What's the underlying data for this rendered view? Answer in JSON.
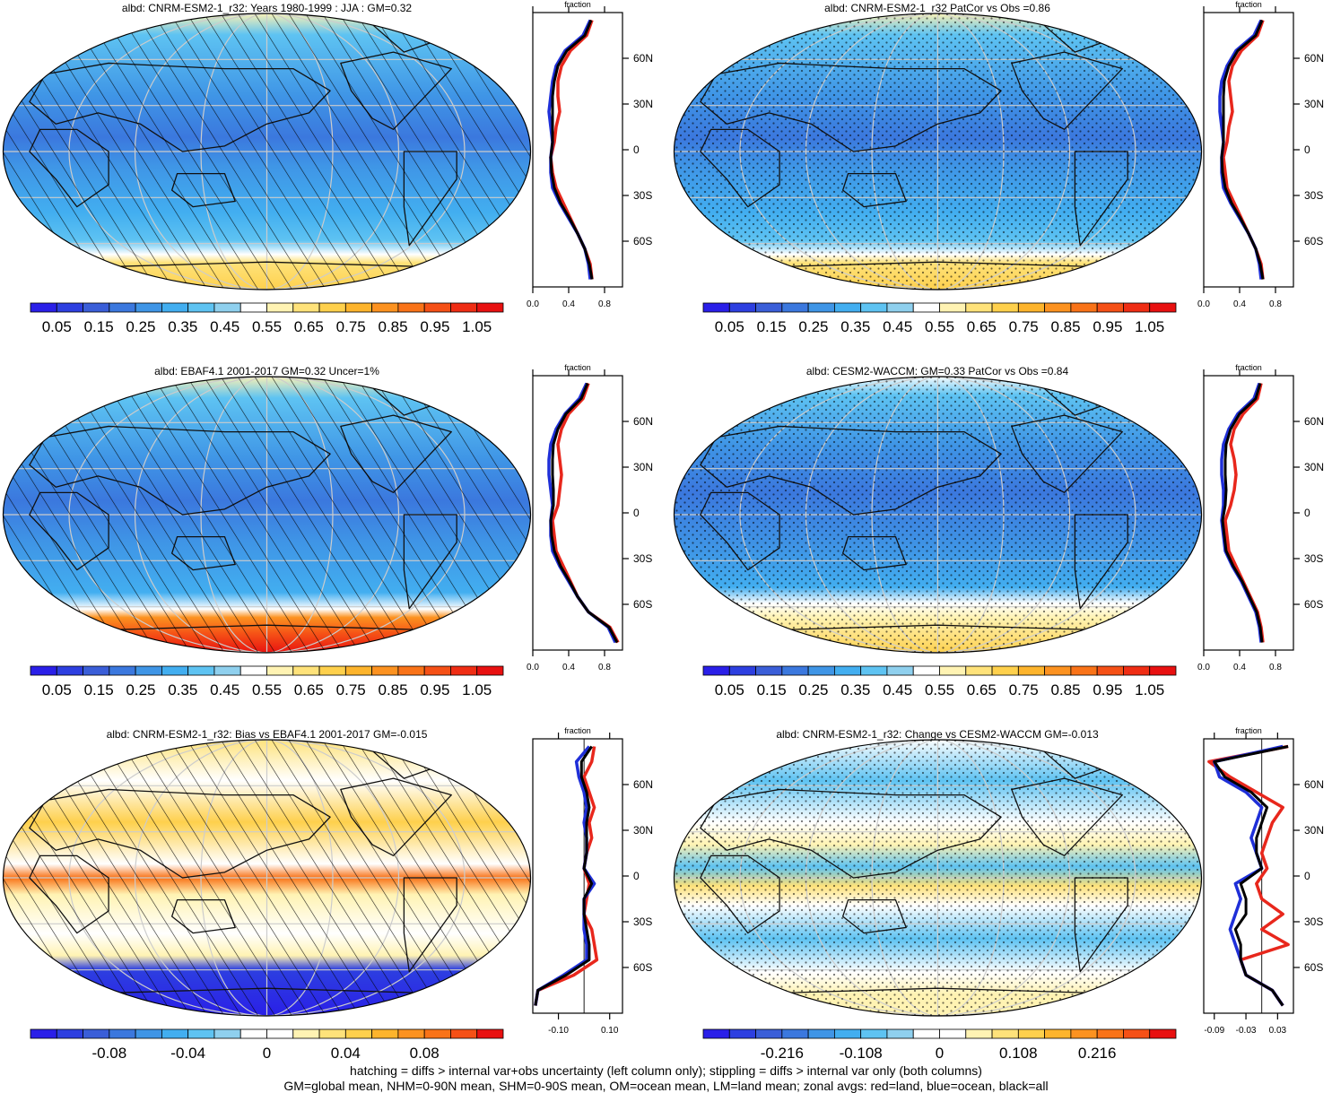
{
  "colors": {
    "seq": [
      "#2a1fe8",
      "#2d3fe0",
      "#3a5ed8",
      "#3b78de",
      "#3f95e6",
      "#42aef0",
      "#5ec3f2",
      "#8fd0ee",
      "#ffffff",
      "#fff3b3",
      "#fee27a",
      "#fed04c",
      "#fdb42c",
      "#fc9220",
      "#f97318",
      "#f55016",
      "#ef2d14",
      "#e81010"
    ],
    "div": [
      "#2a1fe8",
      "#2d3fe0",
      "#3a5ed8",
      "#3b78de",
      "#3f95e6",
      "#42aef0",
      "#5ec3f2",
      "#8fd0ee",
      "#ffffff",
      "#ffffff",
      "#fff3b3",
      "#fee27a",
      "#fed04c",
      "#fdb42c",
      "#fc9220",
      "#f97318",
      "#f55016",
      "#e81010"
    ],
    "land": "#e8271c",
    "ocean": "#1f2fd8",
    "all": "#000000"
  },
  "panels": [
    {
      "id": "p1",
      "title": "albd: CNRM-ESM2-1_r32: Years 1980-1999 : JJA : GM=0.32",
      "overlay": "hatch",
      "zonal_header": "fraction",
      "colorbar_labels": [
        "0.05",
        "0.15",
        "0.25",
        "0.35",
        "0.45",
        "0.55",
        "0.65",
        "0.75",
        "0.85",
        "0.95",
        "1.05"
      ],
      "palette": "seq"
    },
    {
      "id": "p2",
      "title": "albd: CNRM-ESM2-1_r32 PatCor vs Obs =0.86",
      "overlay": "stipple",
      "zonal_header": "fraction",
      "colorbar_labels": [
        "0.05",
        "0.15",
        "0.25",
        "0.35",
        "0.45",
        "0.55",
        "0.65",
        "0.75",
        "0.85",
        "0.95",
        "1.05"
      ],
      "palette": "seq"
    },
    {
      "id": "p3",
      "title": "albd: EBAF4.1 2001-2017 GM=0.32 Uncer=1%",
      "overlay": "hatch",
      "zonal_header": "fraction",
      "colorbar_labels": [
        "0.05",
        "0.15",
        "0.25",
        "0.35",
        "0.45",
        "0.55",
        "0.65",
        "0.75",
        "0.85",
        "0.95",
        "1.05"
      ],
      "palette": "seq"
    },
    {
      "id": "p4",
      "title": "albd: CESM2-WACCM: GM=0.33 PatCor vs Obs =0.84",
      "overlay": "stipple",
      "zonal_header": "fraction",
      "colorbar_labels": [
        "0.05",
        "0.15",
        "0.25",
        "0.35",
        "0.45",
        "0.55",
        "0.65",
        "0.75",
        "0.85",
        "0.95",
        "1.05"
      ],
      "palette": "seq"
    },
    {
      "id": "p5",
      "title": "albd: CNRM-ESM2-1_r32: Bias vs EBAF4.1 2001-2017 GM=-0.015",
      "overlay": "hatch",
      "zonal_header": "fraction",
      "colorbar_labels": [
        "-0.08",
        "-0.04",
        "0",
        "0.04",
        "0.08"
      ],
      "palette": "div"
    },
    {
      "id": "p6",
      "title": "albd: CNRM-ESM2-1_r32: Change vs CESM2-WACCM GM=-0.013",
      "overlay": "stipple",
      "zonal_header": "fraction",
      "colorbar_labels": [
        "-0.216",
        "-0.108",
        "0",
        "0.108",
        "0.216"
      ],
      "palette": "div"
    }
  ],
  "lat_labels": [
    "60N",
    "30N",
    "0",
    "30S",
    "60S"
  ],
  "chart_data": [
    {
      "type": "line",
      "panel": "p1",
      "xlim": [
        0,
        1.0
      ],
      "x_ticks": [
        "0.0",
        "0.4",
        "0.8"
      ],
      "x_tick_values": [
        0,
        0.4,
        0.8
      ],
      "ylim": [
        -90,
        90
      ],
      "y_ticks": [
        60,
        30,
        0,
        -30,
        -60
      ],
      "lat": [
        85,
        75,
        65,
        55,
        45,
        35,
        25,
        15,
        5,
        -5,
        -15,
        -25,
        -35,
        -45,
        -55,
        -65,
        -75,
        -85
      ],
      "series": [
        {
          "key": "land",
          "values": [
            0.66,
            0.6,
            0.42,
            0.32,
            0.28,
            0.28,
            0.3,
            0.26,
            0.24,
            0.2,
            0.22,
            0.26,
            0.34,
            0.42,
            0.5,
            0.58,
            0.64,
            0.66
          ]
        },
        {
          "key": "ocean",
          "values": [
            0.64,
            0.56,
            0.36,
            0.26,
            0.22,
            0.2,
            0.18,
            0.2,
            0.22,
            0.2,
            0.2,
            0.22,
            0.3,
            0.4,
            0.5,
            0.58,
            0.62,
            0.64
          ]
        },
        {
          "key": "all",
          "values": [
            0.65,
            0.58,
            0.38,
            0.28,
            0.24,
            0.22,
            0.22,
            0.22,
            0.22,
            0.2,
            0.21,
            0.24,
            0.31,
            0.41,
            0.5,
            0.58,
            0.63,
            0.66
          ]
        }
      ]
    },
    {
      "type": "line",
      "panel": "p2",
      "xlim": [
        0,
        1.0
      ],
      "x_ticks": [
        "0.0",
        "0.4",
        "0.8"
      ],
      "x_tick_values": [
        0,
        0.4,
        0.8
      ],
      "ylim": [
        -90,
        90
      ],
      "y_ticks": [
        60,
        30,
        0,
        -30,
        -60
      ],
      "lat": [
        85,
        75,
        65,
        55,
        45,
        35,
        25,
        15,
        5,
        -5,
        -15,
        -25,
        -35,
        -45,
        -55,
        -65,
        -75,
        -85
      ],
      "series": [
        {
          "key": "land",
          "values": [
            0.66,
            0.6,
            0.42,
            0.32,
            0.28,
            0.3,
            0.32,
            0.28,
            0.26,
            0.22,
            0.24,
            0.26,
            0.34,
            0.42,
            0.5,
            0.58,
            0.64,
            0.66
          ]
        },
        {
          "key": "ocean",
          "values": [
            0.64,
            0.56,
            0.36,
            0.26,
            0.2,
            0.18,
            0.18,
            0.2,
            0.22,
            0.2,
            0.2,
            0.22,
            0.3,
            0.4,
            0.5,
            0.58,
            0.62,
            0.64
          ]
        },
        {
          "key": "all",
          "values": [
            0.65,
            0.58,
            0.38,
            0.28,
            0.23,
            0.22,
            0.22,
            0.22,
            0.22,
            0.2,
            0.21,
            0.24,
            0.31,
            0.41,
            0.5,
            0.58,
            0.63,
            0.66
          ]
        }
      ]
    },
    {
      "type": "line",
      "panel": "p3",
      "xlim": [
        0,
        1.0
      ],
      "x_ticks": [
        "0.0",
        "0.4",
        "0.8"
      ],
      "x_tick_values": [
        0,
        0.4,
        0.8
      ],
      "ylim": [
        -90,
        90
      ],
      "y_ticks": [
        60,
        30,
        0,
        -30,
        -60
      ],
      "lat": [
        85,
        75,
        65,
        55,
        45,
        35,
        25,
        15,
        5,
        -5,
        -15,
        -25,
        -35,
        -45,
        -55,
        -65,
        -75,
        -85
      ],
      "series": [
        {
          "key": "land",
          "values": [
            0.62,
            0.56,
            0.4,
            0.32,
            0.28,
            0.3,
            0.32,
            0.3,
            0.28,
            0.22,
            0.24,
            0.26,
            0.34,
            0.42,
            0.5,
            0.62,
            0.86,
            0.95
          ]
        },
        {
          "key": "ocean",
          "values": [
            0.6,
            0.52,
            0.36,
            0.26,
            0.2,
            0.18,
            0.18,
            0.2,
            0.22,
            0.2,
            0.2,
            0.22,
            0.3,
            0.4,
            0.5,
            0.62,
            0.84,
            0.92
          ]
        },
        {
          "key": "all",
          "values": [
            0.61,
            0.54,
            0.37,
            0.28,
            0.23,
            0.22,
            0.22,
            0.23,
            0.23,
            0.2,
            0.21,
            0.24,
            0.31,
            0.41,
            0.5,
            0.62,
            0.85,
            0.94
          ]
        }
      ]
    },
    {
      "type": "line",
      "panel": "p4",
      "xlim": [
        0,
        1.0
      ],
      "x_ticks": [
        "0.0",
        "0.4",
        "0.8"
      ],
      "x_tick_values": [
        0,
        0.4,
        0.8
      ],
      "ylim": [
        -90,
        90
      ],
      "y_ticks": [
        60,
        30,
        0,
        -30,
        -60
      ],
      "lat": [
        85,
        75,
        65,
        55,
        45,
        35,
        25,
        15,
        5,
        -5,
        -15,
        -25,
        -35,
        -45,
        -55,
        -65,
        -75,
        -85
      ],
      "series": [
        {
          "key": "land",
          "values": [
            0.64,
            0.6,
            0.44,
            0.34,
            0.3,
            0.34,
            0.36,
            0.34,
            0.3,
            0.24,
            0.26,
            0.28,
            0.36,
            0.44,
            0.52,
            0.6,
            0.64,
            0.66
          ]
        },
        {
          "key": "ocean",
          "values": [
            0.62,
            0.56,
            0.38,
            0.28,
            0.22,
            0.2,
            0.2,
            0.22,
            0.22,
            0.2,
            0.22,
            0.24,
            0.32,
            0.42,
            0.5,
            0.58,
            0.62,
            0.64
          ]
        },
        {
          "key": "all",
          "values": [
            0.63,
            0.58,
            0.4,
            0.3,
            0.25,
            0.24,
            0.24,
            0.25,
            0.24,
            0.21,
            0.23,
            0.25,
            0.33,
            0.43,
            0.51,
            0.59,
            0.63,
            0.65
          ]
        }
      ]
    },
    {
      "type": "line",
      "panel": "p5",
      "xlim": [
        -0.2,
        0.15
      ],
      "x_ticks": [
        "-0.10",
        "0.10"
      ],
      "x_tick_values": [
        -0.1,
        0.1
      ],
      "zero_line": 0,
      "ylim": [
        -90,
        90
      ],
      "y_ticks": [
        60,
        30,
        0,
        -30,
        -60
      ],
      "lat": [
        85,
        75,
        65,
        55,
        45,
        35,
        25,
        15,
        5,
        -5,
        -15,
        -25,
        -35,
        -45,
        -55,
        -65,
        -75,
        -85
      ],
      "series": [
        {
          "key": "land",
          "values": [
            0.04,
            0.03,
            0.0,
            0.02,
            0.04,
            0.02,
            0.03,
            0.01,
            0.0,
            0.02,
            0.01,
            0.0,
            0.03,
            0.04,
            0.05,
            -0.04,
            -0.18,
            -0.19
          ]
        },
        {
          "key": "ocean",
          "values": [
            0.02,
            -0.03,
            -0.02,
            0.0,
            0.01,
            0.0,
            0.01,
            0.01,
            0.0,
            0.04,
            0.0,
            0.0,
            0.0,
            0.01,
            0.01,
            -0.08,
            -0.18,
            -0.19
          ]
        },
        {
          "key": "all",
          "values": [
            0.03,
            -0.01,
            -0.01,
            0.01,
            0.02,
            0.01,
            0.01,
            0.01,
            0.0,
            0.03,
            0.0,
            0.0,
            0.01,
            0.02,
            0.02,
            -0.07,
            -0.18,
            -0.19
          ]
        }
      ]
    },
    {
      "type": "line",
      "panel": "p6",
      "xlim": [
        -0.11,
        0.06
      ],
      "x_ticks": [
        "-0.09",
        "-0.03",
        "0.03"
      ],
      "x_tick_values": [
        -0.09,
        -0.03,
        0.03
      ],
      "zero_line": 0,
      "ylim": [
        -90,
        90
      ],
      "y_ticks": [
        60,
        30,
        0,
        -30,
        -60
      ],
      "lat": [
        85,
        75,
        65,
        55,
        45,
        35,
        25,
        15,
        5,
        -5,
        -15,
        -25,
        -35,
        -45,
        -55,
        -65,
        -75,
        -85
      ],
      "series": [
        {
          "key": "land",
          "values": [
            0.05,
            -0.1,
            -0.06,
            -0.01,
            0.04,
            0.02,
            0.01,
            0.0,
            0.01,
            -0.01,
            0.0,
            0.04,
            0.0,
            0.05,
            -0.04,
            -0.03,
            0.02,
            0.04
          ]
        },
        {
          "key": "ocean",
          "values": [
            0.04,
            -0.09,
            -0.08,
            -0.03,
            0.0,
            -0.01,
            -0.02,
            -0.01,
            0.0,
            -0.05,
            -0.04,
            -0.05,
            -0.06,
            -0.05,
            -0.04,
            -0.03,
            0.02,
            0.04
          ]
        },
        {
          "key": "all",
          "values": [
            0.05,
            -0.09,
            -0.07,
            -0.02,
            0.01,
            0.0,
            -0.01,
            -0.01,
            0.0,
            -0.04,
            -0.03,
            -0.03,
            -0.05,
            -0.04,
            -0.04,
            -0.03,
            0.02,
            0.04
          ]
        }
      ]
    }
  ],
  "footer": [
    "hatching = diffs > internal var+obs uncertainty (left column only); stippling = diffs > internal var only (both columns)",
    "GM=global mean, NHM=0-90N mean, SHM=0-90S mean, OM=ocean mean, LM=land mean; zonal avgs: red=land, blue=ocean, black=all"
  ]
}
